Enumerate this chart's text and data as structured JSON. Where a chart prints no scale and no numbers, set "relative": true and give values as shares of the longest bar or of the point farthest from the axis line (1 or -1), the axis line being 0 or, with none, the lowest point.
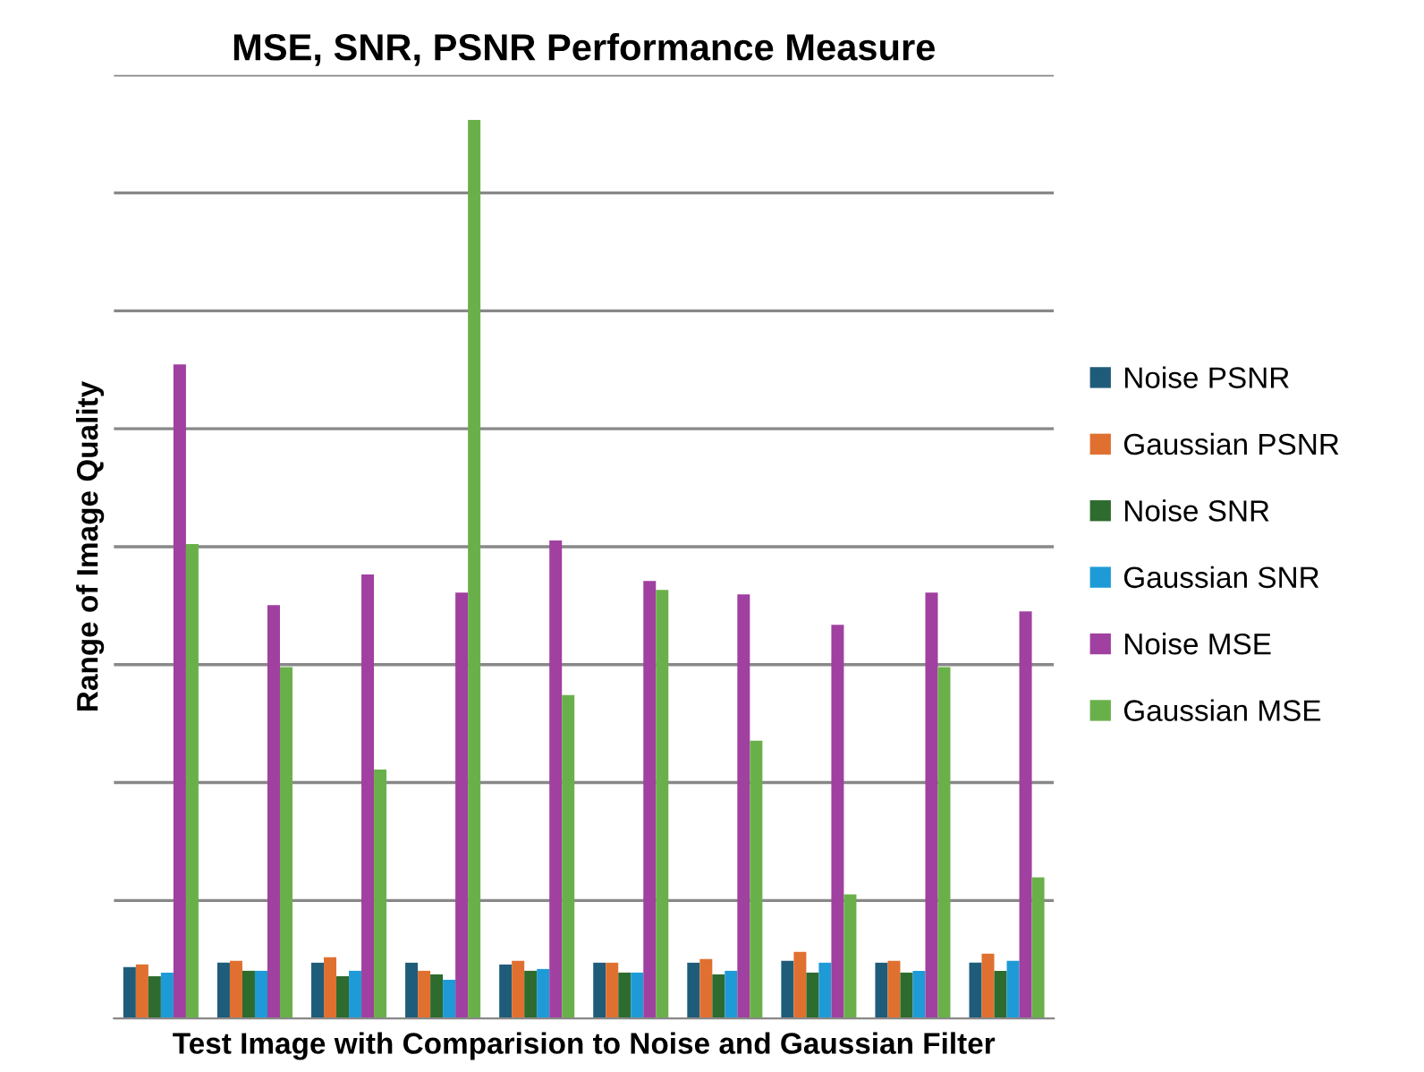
{
  "chart_data": {
    "type": "bar",
    "title": "MSE, SNR, PSNR Performance Measure",
    "xlabel": "Test Image with Comparision to Noise and Gaussian Filter",
    "ylabel": "Range of Image Quality",
    "relative": true,
    "grid": "y",
    "legend": "right",
    "categories": [
      null,
      null,
      null,
      null,
      null,
      null,
      null,
      null,
      null,
      null
    ],
    "series": [
      {
        "name": "Noise PSNR",
        "color": "#1f5c7a",
        "values": [
          0.057,
          0.062,
          0.062,
          0.062,
          0.06,
          0.062,
          0.062,
          0.064,
          0.062,
          0.062
        ]
      },
      {
        "name": "Gaussian PSNR",
        "color": "#e07030",
        "values": [
          0.06,
          0.064,
          0.068,
          0.053,
          0.064,
          0.062,
          0.066,
          0.074,
          0.064,
          0.072
        ]
      },
      {
        "name": "Noise SNR",
        "color": "#2e6b2e",
        "values": [
          0.047,
          0.053,
          0.047,
          0.049,
          0.053,
          0.051,
          0.049,
          0.051,
          0.051,
          0.053
        ]
      },
      {
        "name": "Gaussian SNR",
        "color": "#1e9bd7",
        "values": [
          0.051,
          0.053,
          0.053,
          0.043,
          0.055,
          0.051,
          0.053,
          0.062,
          0.053,
          0.064
        ]
      },
      {
        "name": "Noise MSE",
        "color": "#a040a0",
        "values": [
          0.728,
          0.46,
          0.494,
          0.474,
          0.532,
          0.487,
          0.472,
          0.438,
          0.474,
          0.453
        ]
      },
      {
        "name": "Gaussian MSE",
        "color": "#6ab04a",
        "values": [
          0.528,
          0.391,
          0.277,
          1,
          0.36,
          0.477,
          0.309,
          0.138,
          0.391,
          0.157
        ]
      }
    ]
  }
}
